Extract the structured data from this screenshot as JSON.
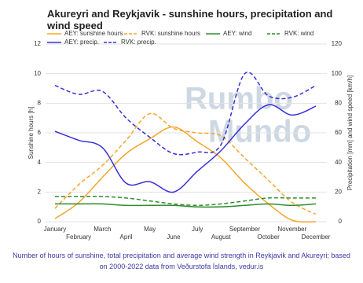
{
  "chart_data": {
    "type": "line",
    "title": "Akureyri and Reykjavik - sunshine hours, precipitation and wind speed",
    "y_label": "Sunshine hours [h]",
    "y2_label": "Precipitation [mm] and wind speed [km/h]",
    "watermark": [
      "Rumbo",
      "Mundo"
    ],
    "caption": "Number of hours of sunshine, total precipitation and average wind strength in Reykjavik and Akureyri; based on 2000-2022 data from Veðurstofa Íslands, vedur.is",
    "categories": [
      "January",
      "February",
      "March",
      "April",
      "May",
      "June",
      "July",
      "August",
      "September",
      "October",
      "November",
      "December"
    ],
    "ylim": [
      0,
      12
    ],
    "yticks": [
      0,
      2,
      4,
      6,
      8,
      10,
      12
    ],
    "y2lim": [
      0,
      120
    ],
    "y2ticks": [
      0,
      20,
      40,
      60,
      80,
      100,
      120
    ],
    "grid": true,
    "series": [
      {
        "name": "AEY: sunshine hours",
        "color": "#f5a52c",
        "dashed": false,
        "values": [
          0.2,
          1.3,
          3.0,
          4.6,
          5.6,
          6.4,
          5.4,
          4.3,
          2.6,
          1.2,
          0.1,
          0.0
        ]
      },
      {
        "name": "RVK: sunshine hours",
        "color": "#f5a52c",
        "dashed": true,
        "values": [
          0.9,
          2.5,
          3.8,
          5.5,
          7.3,
          6.3,
          6.0,
          5.8,
          4.3,
          2.8,
          1.3,
          0.5
        ]
      },
      {
        "name": "AEY: wind",
        "color": "#2e8b2e",
        "dashed": false,
        "axis": "y2",
        "values": [
          12,
          12,
          12,
          11,
          11,
          11,
          10,
          10,
          11,
          12,
          11,
          12
        ]
      },
      {
        "name": "RVK: wind",
        "color": "#2e8b2e",
        "dashed": true,
        "axis": "y2",
        "values": [
          17,
          17,
          17,
          16,
          14,
          12,
          11,
          12,
          14,
          16,
          16,
          16
        ]
      },
      {
        "name": "AEY: precip.",
        "color": "#3a2fd8",
        "dashed": false,
        "axis": "y2",
        "values": [
          61,
          55,
          50,
          26,
          27,
          20,
          34,
          48,
          66,
          79,
          72,
          78
        ]
      },
      {
        "name": "RVK: precip.",
        "color": "#3a2fd8",
        "dashed": true,
        "axis": "y2",
        "values": [
          92,
          86,
          88,
          70,
          57,
          46,
          47,
          52,
          100,
          85,
          84,
          92
        ]
      }
    ]
  }
}
